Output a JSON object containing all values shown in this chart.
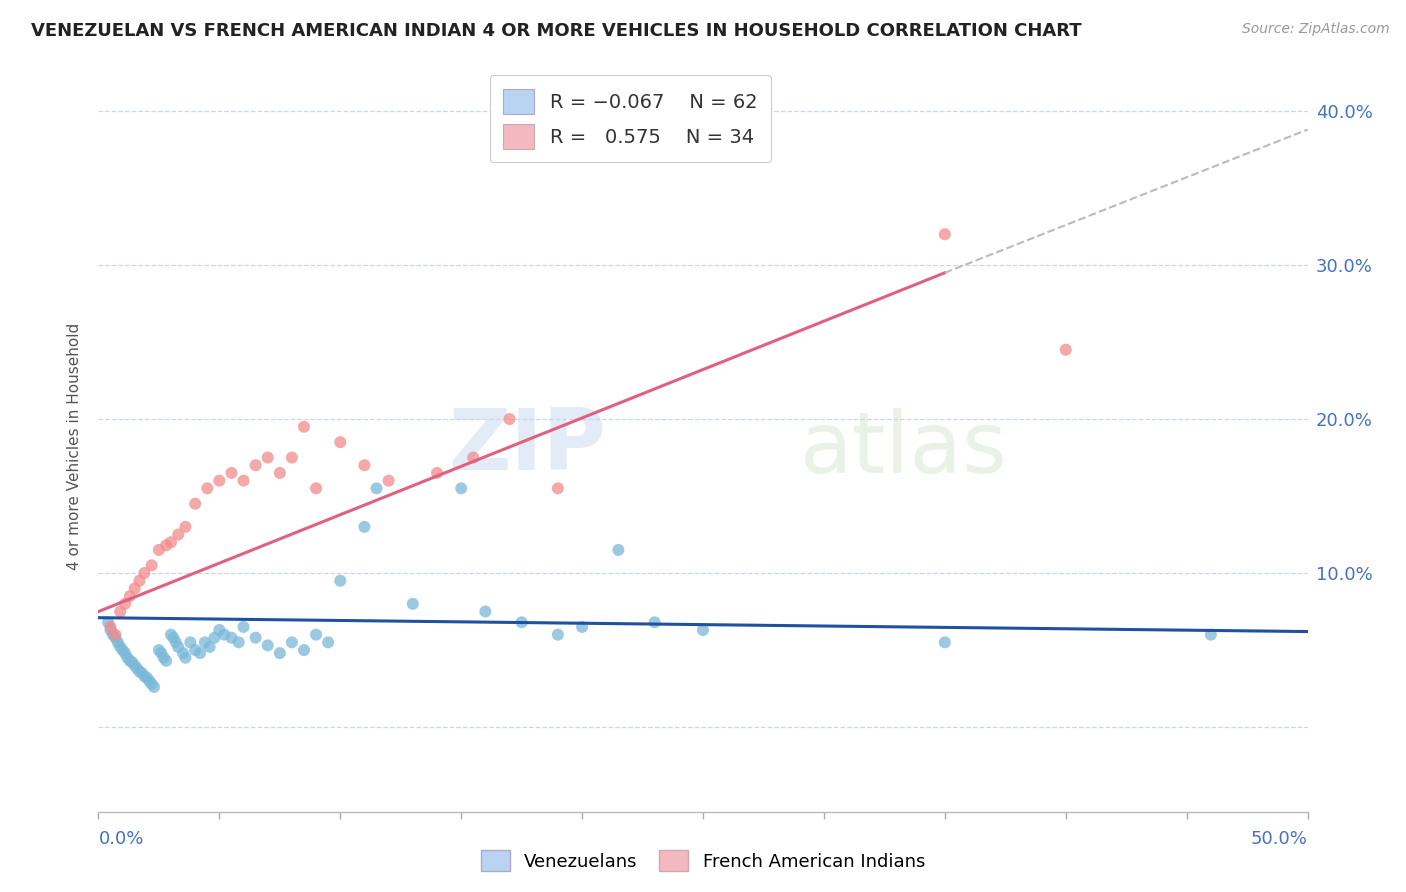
{
  "title": "VENEZUELAN VS FRENCH AMERICAN INDIAN 4 OR MORE VEHICLES IN HOUSEHOLD CORRELATION CHART",
  "source": "Source: ZipAtlas.com",
  "ylabel": "4 or more Vehicles in Household",
  "xlim": [
    0.0,
    0.5
  ],
  "ylim": [
    -0.055,
    0.42
  ],
  "ytick_values": [
    0.0,
    0.1,
    0.2,
    0.3,
    0.4
  ],
  "ytick_labels": [
    "",
    "10.0%",
    "20.0%",
    "30.0%",
    "40.0%"
  ],
  "venezuelan_color": "#7ab8d9",
  "french_color": "#f28b8b",
  "trend_venezuelan_color": "#2050a0",
  "trend_french_color": "#e06080",
  "trend_dash_color": "#bbbbbb",
  "legend_box_ven": "#b8d4f0",
  "legend_box_fre": "#f4b8c1",
  "tick_color": "#4472c4",
  "grid_color": "#c8d8e8",
  "venezuelan_x": [
    0.004,
    0.005,
    0.006,
    0.007,
    0.008,
    0.009,
    0.01,
    0.011,
    0.012,
    0.013,
    0.014,
    0.015,
    0.016,
    0.017,
    0.018,
    0.019,
    0.02,
    0.021,
    0.022,
    0.023,
    0.025,
    0.026,
    0.027,
    0.028,
    0.03,
    0.031,
    0.032,
    0.033,
    0.035,
    0.036,
    0.038,
    0.04,
    0.042,
    0.044,
    0.046,
    0.048,
    0.05,
    0.052,
    0.055,
    0.058,
    0.06,
    0.065,
    0.07,
    0.075,
    0.08,
    0.085,
    0.09,
    0.095,
    0.1,
    0.11,
    0.115,
    0.13,
    0.15,
    0.16,
    0.175,
    0.19,
    0.2,
    0.215,
    0.23,
    0.25,
    0.35,
    0.46
  ],
  "venezuelan_y": [
    0.068,
    0.063,
    0.06,
    0.058,
    0.055,
    0.052,
    0.05,
    0.048,
    0.045,
    0.043,
    0.042,
    0.04,
    0.038,
    0.036,
    0.035,
    0.033,
    0.032,
    0.03,
    0.028,
    0.026,
    0.05,
    0.048,
    0.045,
    0.043,
    0.06,
    0.058,
    0.055,
    0.052,
    0.048,
    0.045,
    0.055,
    0.05,
    0.048,
    0.055,
    0.052,
    0.058,
    0.063,
    0.06,
    0.058,
    0.055,
    0.065,
    0.058,
    0.053,
    0.048,
    0.055,
    0.05,
    0.06,
    0.055,
    0.095,
    0.13,
    0.155,
    0.08,
    0.155,
    0.075,
    0.068,
    0.06,
    0.065,
    0.115,
    0.068,
    0.063,
    0.055,
    0.06
  ],
  "french_x": [
    0.005,
    0.007,
    0.009,
    0.011,
    0.013,
    0.015,
    0.017,
    0.019,
    0.022,
    0.025,
    0.028,
    0.03,
    0.033,
    0.036,
    0.04,
    0.045,
    0.05,
    0.055,
    0.06,
    0.065,
    0.07,
    0.075,
    0.08,
    0.085,
    0.09,
    0.1,
    0.11,
    0.12,
    0.14,
    0.155,
    0.17,
    0.19,
    0.35,
    0.4
  ],
  "french_y": [
    0.065,
    0.06,
    0.075,
    0.08,
    0.085,
    0.09,
    0.095,
    0.1,
    0.105,
    0.115,
    0.118,
    0.12,
    0.125,
    0.13,
    0.145,
    0.155,
    0.16,
    0.165,
    0.16,
    0.17,
    0.175,
    0.165,
    0.175,
    0.195,
    0.155,
    0.185,
    0.17,
    0.16,
    0.165,
    0.175,
    0.2,
    0.155,
    0.32,
    0.245
  ],
  "trend_ven_x0": 0.0,
  "trend_ven_x1": 0.5,
  "trend_ven_y0": 0.071,
  "trend_ven_y1": 0.062,
  "trend_fre_solid_x0": 0.0,
  "trend_fre_solid_x1": 0.35,
  "trend_fre_solid_y0": 0.075,
  "trend_fre_solid_y1": 0.295,
  "trend_fre_dash_x0": 0.35,
  "trend_fre_dash_x1": 0.5,
  "trend_fre_dash_y0": 0.295,
  "trend_fre_dash_y1": 0.388
}
